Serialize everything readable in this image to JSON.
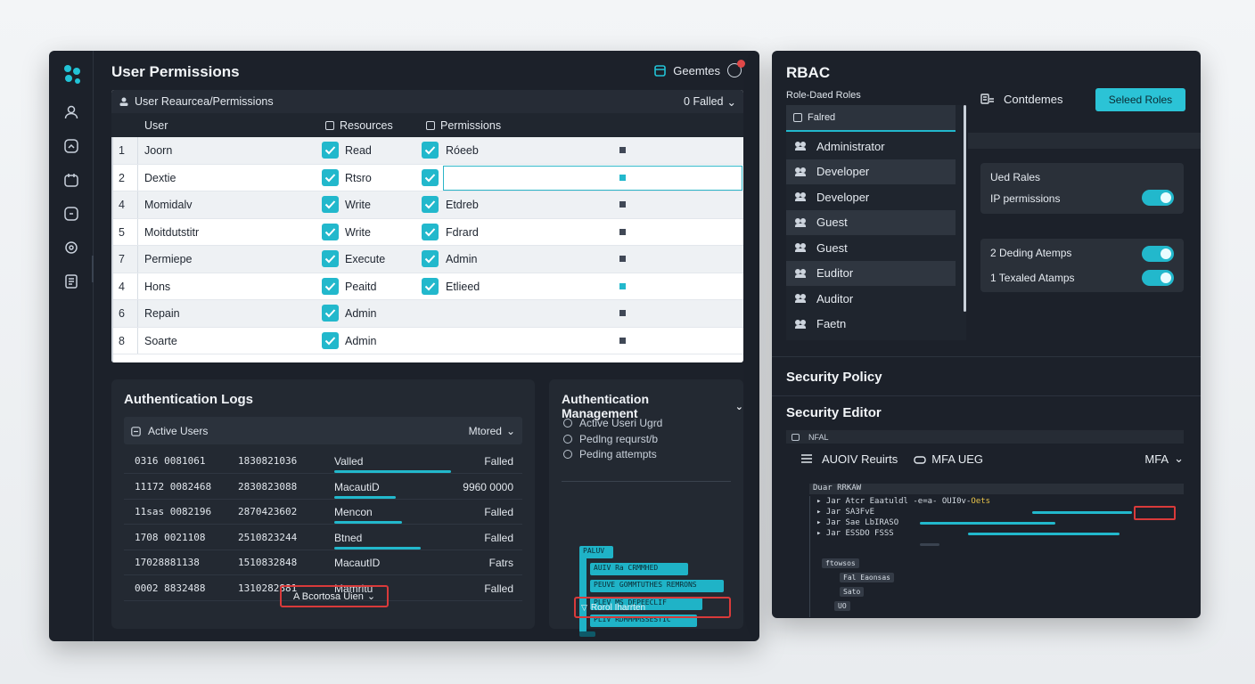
{
  "left_window": {
    "title": "User Permissions",
    "top_action_label": "Geemtes",
    "permissions_panel": {
      "breadcrumb": "User Reaurcea/Permissions",
      "filter_label": "0 Falled",
      "headers": {
        "user": "User",
        "resources": "Resources",
        "permissions": "Permissions"
      },
      "rows": [
        {
          "num": "1",
          "user": "Joorn",
          "resource": "Read",
          "permission": "Róeeb",
          "marker": "dark"
        },
        {
          "num": "2",
          "user": "Dextie",
          "resource": "Rtsro",
          "permission": "",
          "marker": "cyan"
        },
        {
          "num": "4",
          "user": "Momidalv",
          "resource": "Write",
          "permission": "Etdreb",
          "marker": "dark"
        },
        {
          "num": "5",
          "user": "Moitdutstitr",
          "resource": "Write",
          "permission": "Fdrard",
          "marker": "dark"
        },
        {
          "num": "7",
          "user": "Permiepe",
          "resource": "Execute",
          "permission": "Admin",
          "marker": "dark"
        },
        {
          "num": "4",
          "user": "Hons",
          "resource": "Peaitd",
          "permission": "Etlieed",
          "marker": "cyan"
        },
        {
          "num": "6",
          "user": "Repain",
          "resource": "Admin",
          "permission": "",
          "marker": "dark"
        },
        {
          "num": "8",
          "user": "Soarte",
          "resource": "Admin",
          "permission": "",
          "marker": "dark"
        }
      ]
    },
    "auth_logs": {
      "title": "Authentication Logs",
      "filter_left": "Active Users",
      "filter_right": "Mtored",
      "rows": [
        {
          "c1": "0316 0081061",
          "c2": "1830821036",
          "c3": "Valled",
          "c4": "Falled",
          "bar": 0.57
        },
        {
          "c1": "11172 0082468",
          "c2": "2830823088",
          "c3": "MacautiD",
          "c4": "9960 0000",
          "bar": 0.3
        },
        {
          "c1": "11sas 0082196",
          "c2": "2870423602",
          "c3": "Mencon",
          "c4": "Falled",
          "bar": 0.33
        },
        {
          "c1": "1708 0021108",
          "c2": "2510823244",
          "c3": "Btned",
          "c4": "Falled",
          "bar": 0.42
        },
        {
          "c1": "17028881138",
          "c2": "1510832848",
          "c3": "MacautID",
          "c4": "Fatrs",
          "bar": 0
        },
        {
          "c1": "0002 8832488",
          "c2": "1310282881",
          "c3": "Mamritu",
          "c4": "Falled",
          "bar": 0
        }
      ],
      "dropdown": "A Bcortosa Uien"
    },
    "auth_mgmt": {
      "title": "Authentication Management",
      "items": [
        "Active Useri Ugrd",
        "Pedlng requrst/b",
        "Peding attempts"
      ],
      "blocks": [
        "PALUV",
        "AUIV  Ra  CRMMHED",
        "PEUVE  GOMMTUTHES REMRONS",
        "PLEV  MS  DEPEECLIF",
        "PLIV  RDMMMMSSESTIC"
      ],
      "button": "Rorol Iharrten"
    }
  },
  "right_window": {
    "title": "RBAC",
    "subtitle": "Role-Daed Roles",
    "roles_header": "Falred",
    "roles": [
      "Administrator",
      "Developer",
      "Developer",
      "Guest",
      "Guest",
      "Euditor",
      "Auditor",
      "Faetn"
    ],
    "controls_label": "Contdemes",
    "selected_roles_button": "Seleed Roles",
    "card1": {
      "title": "Ued Rales",
      "line": "IP permissions"
    },
    "card2": {
      "line1": "2   Deding Atemps",
      "line2": "1   Texaled Atamps"
    },
    "security_policy": "Security Policy",
    "security_editor": "Security Editor",
    "editor_tab": "NFAL",
    "editor_toolbar": {
      "left": "AUOIV Reuirts",
      "middle": "MFA UEG",
      "right": "MFA"
    },
    "code": {
      "header": "Duar  RRKAW",
      "lines": [
        "Jar  Atcr  Eaatuldl -e=a- OUI0v-",
        "Jar   SA3FvE",
        "Jar  Sae  LbIRASO",
        "Jar  ESSDO  FSSS"
      ],
      "line1_tail": "Oets",
      "tree": [
        "ftowsos",
        "Fal  Eaonsas",
        "Sato",
        "UO"
      ]
    }
  }
}
